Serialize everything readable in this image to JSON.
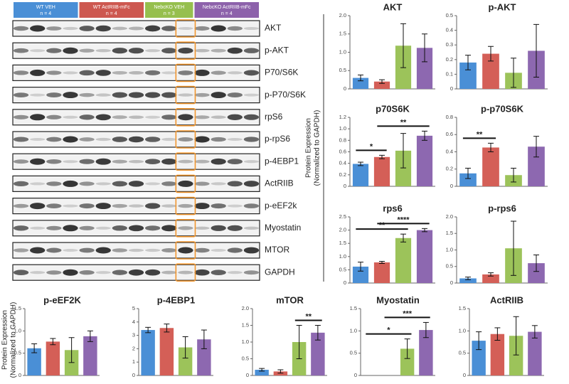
{
  "blot": {
    "groups": [
      {
        "name": "WT VEH",
        "n": "n = 4",
        "color": "#4a8fd6"
      },
      {
        "name": "WT ActRIIB-mFc",
        "n": "n = 4",
        "color": "#cd5850"
      },
      {
        "name": "NebcKO VEH",
        "n": "n = 3",
        "color": "#96bf4e"
      },
      {
        "name": "NebcKO ActRIIB-mFc",
        "n": "n = 4",
        "color": "#8d62ab"
      }
    ],
    "rows": [
      "AKT",
      "p-AKT",
      "P70/S6K",
      "p-P70/S6K",
      "rpS6",
      "p-rpS6",
      "p-4EBP1",
      "ActRIIB",
      "p-eEF2k",
      "Myostatin",
      "MTOR",
      "GAPDH"
    ]
  },
  "y_axis_label": [
    "Protein Expression",
    "(Normalized to GAPDH)"
  ],
  "chart_data": [
    {
      "type": "bar",
      "title": "AKT",
      "colors": [
        "#4a8fd6",
        "#d45f57",
        "#9cc35a",
        "#8d68b0"
      ],
      "values": [
        0.3,
        0.2,
        1.18,
        1.12
      ],
      "errors": [
        0.08,
        0.05,
        0.6,
        0.38
      ],
      "ylim": [
        0,
        2
      ],
      "yticks": [
        0,
        0.5,
        {
          "value": 1,
          "label": "1.0"
        },
        1.5,
        {
          "value": 2,
          "label": "2.0"
        }
      ]
    },
    {
      "type": "bar",
      "title": "p-AKT",
      "colors": [
        "#4a8fd6",
        "#d45f57",
        "#9cc35a",
        "#8d68b0"
      ],
      "values": [
        0.18,
        0.24,
        0.11,
        0.26
      ],
      "errors": [
        0.05,
        0.05,
        0.1,
        0.18
      ],
      "ylim": [
        0,
        0.5
      ],
      "yticks": [
        0,
        0.1,
        0.2,
        0.3,
        0.4,
        0.5
      ]
    },
    {
      "type": "bar",
      "title": "p70S6K",
      "colors": [
        "#4a8fd6",
        "#d45f57",
        "#9cc35a",
        "#8d68b0"
      ],
      "values": [
        0.39,
        0.51,
        0.62,
        0.88
      ],
      "errors": [
        0.03,
        0.03,
        0.3,
        0.08
      ],
      "ylim": [
        0,
        1.2
      ],
      "yticks": [
        0,
        0.2,
        0.4,
        0.6,
        0.8,
        {
          "value": 1,
          "label": "1.0"
        },
        1.2
      ],
      "comparisons": [
        {
          "label": "*",
          "bars": [
            0,
            1
          ]
        },
        {
          "label": "**",
          "bars": [
            1,
            3
          ]
        }
      ]
    },
    {
      "type": "bar",
      "title": "p-p70S6K",
      "colors": [
        "#4a8fd6",
        "#d45f57",
        "#9cc35a",
        "#8d68b0"
      ],
      "values": [
        0.15,
        0.45,
        0.13,
        0.46
      ],
      "errors": [
        0.06,
        0.05,
        0.08,
        0.12
      ],
      "ylim": [
        0,
        0.8
      ],
      "yticks": [
        0,
        0.2,
        0.4,
        0.6,
        0.8
      ],
      "comparisons": [
        {
          "label": "**",
          "bars": [
            0,
            1
          ]
        }
      ]
    },
    {
      "type": "bar",
      "title": "rps6",
      "colors": [
        "#4a8fd6",
        "#d45f57",
        "#9cc35a",
        "#8d68b0"
      ],
      "values": [
        0.62,
        0.78,
        1.7,
        2.0
      ],
      "errors": [
        0.17,
        0.04,
        0.15,
        0.06
      ],
      "ylim": [
        0,
        2.5
      ],
      "yticks": [
        0,
        0.5,
        {
          "value": 1,
          "label": "1.0"
        },
        1.5,
        {
          "value": 2,
          "label": "2.0"
        },
        2.5
      ],
      "comparisons": [
        {
          "label": "**",
          "bars": [
            0,
            2
          ]
        },
        {
          "label": "****",
          "bars": [
            1,
            3
          ]
        }
      ]
    },
    {
      "type": "bar",
      "title": "p-rps6",
      "colors": [
        "#4a8fd6",
        "#d45f57",
        "#9cc35a",
        "#8d68b0"
      ],
      "values": [
        0.14,
        0.26,
        1.05,
        0.6
      ],
      "errors": [
        0.04,
        0.05,
        0.82,
        0.25
      ],
      "ylim": [
        0,
        2
      ],
      "yticks": [
        0,
        0.5,
        {
          "value": 1,
          "label": "1.0"
        },
        1.5,
        {
          "value": 2,
          "label": "2.0"
        }
      ]
    },
    {
      "type": "bar",
      "title": "p-eEF2K",
      "colors": [
        "#4a8fd6",
        "#d45f57",
        "#9cc35a",
        "#8d68b0"
      ],
      "values": [
        0.61,
        0.76,
        0.57,
        0.88
      ],
      "errors": [
        0.1,
        0.07,
        0.28,
        0.12
      ],
      "ylim": [
        0,
        1.5
      ],
      "yticks": [
        0,
        0.5,
        {
          "value": 1,
          "label": "1.0"
        },
        1.5
      ]
    },
    {
      "type": "bar",
      "title": "p-4EBP1",
      "colors": [
        "#4a8fd6",
        "#d45f57",
        "#9cc35a",
        "#8d68b0"
      ],
      "values": [
        3.4,
        3.55,
        2.1,
        2.7
      ],
      "errors": [
        0.2,
        0.3,
        0.8,
        0.7
      ],
      "ylim": [
        0,
        5
      ],
      "yticks": [
        0,
        1,
        2,
        3,
        4,
        5
      ]
    },
    {
      "type": "bar",
      "title": "mTOR",
      "colors": [
        "#4a8fd6",
        "#d45f57",
        "#9cc35a",
        "#8d68b0"
      ],
      "values": [
        0.17,
        0.12,
        1.0,
        1.28
      ],
      "errors": [
        0.04,
        0.05,
        0.5,
        0.22
      ],
      "ylim": [
        0,
        2
      ],
      "yticks": [
        0,
        0.5,
        {
          "value": 1,
          "label": "1.0"
        },
        1.5,
        {
          "value": 2,
          "label": "2.0"
        }
      ],
      "comparisons": [
        {
          "label": "**",
          "bars": [
            2,
            3
          ]
        }
      ]
    },
    {
      "type": "bar",
      "title": "Myostatin",
      "colors": [
        "#4a8fd6",
        "#d45f57",
        "#9cc35a",
        "#8d68b0"
      ],
      "values": [
        null,
        null,
        0.6,
        1.02
      ],
      "errors": [
        null,
        null,
        0.22,
        0.17
      ],
      "ylim": [
        0,
        1.5
      ],
      "yticks": [
        0,
        0.5,
        {
          "value": 1,
          "label": "1.0"
        },
        1.5
      ],
      "comparisons": [
        {
          "label": "*",
          "bars": [
            0,
            2
          ]
        },
        {
          "label": "***",
          "bars": [
            1,
            3
          ]
        }
      ]
    },
    {
      "type": "bar",
      "title": "ActRIIB",
      "colors": [
        "#4a8fd6",
        "#d45f57",
        "#9cc35a",
        "#8d68b0"
      ],
      "values": [
        0.78,
        0.93,
        0.89,
        0.98
      ],
      "errors": [
        0.2,
        0.14,
        0.43,
        0.14
      ],
      "ylim": [
        0,
        1.5
      ],
      "yticks": [
        0,
        0.5,
        {
          "value": 1,
          "label": "1.0"
        },
        1.5
      ]
    }
  ]
}
